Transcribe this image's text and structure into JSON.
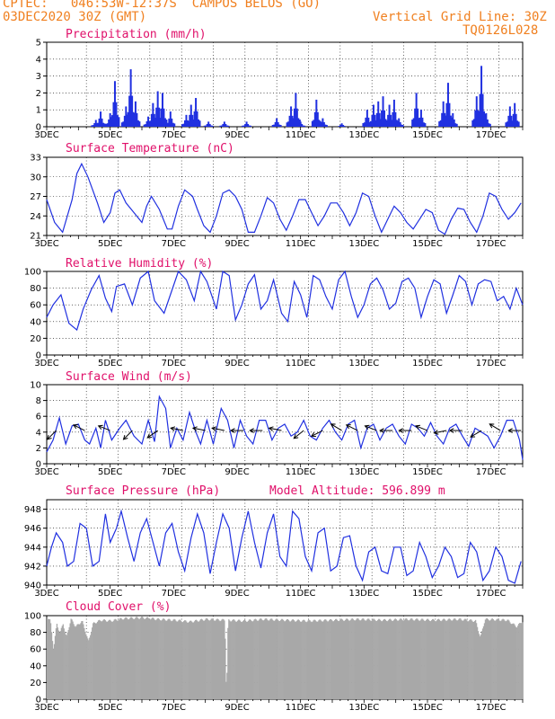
{
  "header": {
    "line1": "CPTEC:   046:53W-12:37S  CAMPOS BELOS (GO)",
    "line2": "03DEC2020 30Z (GMT)",
    "grid_note": "Vertical Grid Line: 30Z",
    "code": "TQ0126L028"
  },
  "colors": {
    "header": "#f08020",
    "title": "#e0106a",
    "series": "#2030e0",
    "cloud": "#a8a8a8"
  },
  "x_labels": [
    "3DEC",
    "5DEC",
    "7DEC",
    "9DEC",
    "11DEC",
    "13DEC",
    "15DEC",
    "17DEC"
  ],
  "chart_data": [
    {
      "id": "precip",
      "type": "bar",
      "title": "Precipitation (mm/h)",
      "ylim": [
        0,
        5
      ],
      "yticks": [
        0,
        1,
        2,
        3,
        4,
        5
      ],
      "x_range_days": [
        3,
        18
      ],
      "bursts": [
        [
          4.55,
          0.4
        ],
        [
          4.7,
          0.9
        ],
        [
          5.0,
          0.8
        ],
        [
          5.15,
          2.7
        ],
        [
          5.5,
          1.2
        ],
        [
          5.65,
          3.4
        ],
        [
          5.8,
          1.5
        ],
        [
          6.2,
          0.6
        ],
        [
          6.35,
          1.4
        ],
        [
          6.5,
          2.1
        ],
        [
          6.65,
          2.0
        ],
        [
          6.9,
          0.9
        ],
        [
          7.4,
          0.7
        ],
        [
          7.55,
          1.3
        ],
        [
          7.7,
          1.7
        ],
        [
          8.1,
          0.3
        ],
        [
          8.6,
          0.3
        ],
        [
          9.3,
          0.3
        ],
        [
          10.25,
          0.5
        ],
        [
          10.7,
          1.2
        ],
        [
          10.85,
          2.0
        ],
        [
          11.0,
          0.3
        ],
        [
          11.5,
          1.6
        ],
        [
          11.7,
          0.5
        ],
        [
          12.3,
          0.2
        ],
        [
          13.1,
          1.0
        ],
        [
          13.3,
          1.3
        ],
        [
          13.45,
          1.5
        ],
        [
          13.6,
          1.8
        ],
        [
          13.8,
          1.3
        ],
        [
          13.95,
          1.6
        ],
        [
          14.1,
          0.5
        ],
        [
          14.65,
          2.0
        ],
        [
          14.8,
          1.0
        ],
        [
          15.5,
          1.5
        ],
        [
          15.65,
          2.6
        ],
        [
          15.8,
          0.8
        ],
        [
          16.55,
          1.8
        ],
        [
          16.7,
          3.6
        ],
        [
          16.85,
          0.8
        ],
        [
          17.6,
          1.2
        ],
        [
          17.75,
          1.4
        ]
      ]
    },
    {
      "id": "temp",
      "type": "line",
      "title": "Surface Temperature (nC)",
      "ylim": [
        21,
        33
      ],
      "yticks": [
        21,
        24,
        27,
        30,
        33
      ],
      "x": [
        3.0,
        3.25,
        3.5,
        3.8,
        3.95,
        4.1,
        4.3,
        4.6,
        4.8,
        5.0,
        5.15,
        5.3,
        5.5,
        5.75,
        6.0,
        6.15,
        6.3,
        6.55,
        6.8,
        6.95,
        7.15,
        7.35,
        7.6,
        7.75,
        7.95,
        8.15,
        8.35,
        8.55,
        8.75,
        8.95,
        9.15,
        9.35,
        9.55,
        9.75,
        9.95,
        10.15,
        10.35,
        10.55,
        10.75,
        10.95,
        11.15,
        11.35,
        11.55,
        11.75,
        11.95,
        12.15,
        12.35,
        12.55,
        12.75,
        12.95,
        13.15,
        13.35,
        13.55,
        13.75,
        13.95,
        14.15,
        14.35,
        14.55,
        14.75,
        14.95,
        15.15,
        15.35,
        15.55,
        15.75,
        15.95,
        16.15,
        16.35,
        16.55,
        16.75,
        16.95,
        17.15,
        17.35,
        17.55,
        17.75,
        17.95
      ],
      "y": [
        26.5,
        23,
        21.5,
        26.5,
        30.5,
        32,
        30,
        26,
        23,
        24.5,
        27.5,
        28,
        26,
        24.5,
        23,
        25.5,
        27,
        25,
        22,
        22,
        25.5,
        28,
        27,
        25,
        22.5,
        21.5,
        24,
        27.5,
        28,
        27,
        25,
        21.5,
        21.5,
        24,
        26.8,
        26,
        23.5,
        21.8,
        24,
        26.5,
        26.5,
        24.5,
        22.5,
        24,
        26,
        26,
        24.5,
        22.5,
        24.5,
        27.5,
        27,
        24,
        21.5,
        23.5,
        25.5,
        24.5,
        23,
        22,
        23.5,
        25,
        24.5,
        21.8,
        21.2,
        23.5,
        25.2,
        25,
        23,
        21.5,
        24,
        27.5,
        27,
        25,
        23.5,
        24.5,
        26
      ]
    },
    {
      "id": "rh",
      "type": "line",
      "title": "Relative Humidity (%)",
      "ylim": [
        0,
        100
      ],
      "yticks": [
        0,
        20,
        40,
        60,
        80,
        100
      ],
      "x": [
        3.0,
        3.2,
        3.45,
        3.7,
        3.95,
        4.15,
        4.4,
        4.65,
        4.85,
        5.05,
        5.2,
        5.45,
        5.7,
        5.95,
        6.2,
        6.4,
        6.7,
        6.95,
        7.15,
        7.4,
        7.65,
        7.85,
        8.05,
        8.35,
        8.55,
        8.75,
        8.95,
        9.15,
        9.35,
        9.55,
        9.75,
        9.95,
        10.15,
        10.4,
        10.6,
        10.8,
        11.0,
        11.2,
        11.4,
        11.6,
        11.8,
        12.0,
        12.2,
        12.4,
        12.6,
        12.8,
        13.0,
        13.2,
        13.4,
        13.6,
        13.8,
        14.0,
        14.2,
        14.4,
        14.6,
        14.8,
        15.0,
        15.2,
        15.4,
        15.6,
        15.8,
        16.0,
        16.2,
        16.4,
        16.6,
        16.8,
        17.0,
        17.2,
        17.4,
        17.6,
        17.8,
        18.0
      ],
      "y": [
        45,
        60,
        72,
        38,
        30,
        55,
        78,
        95,
        68,
        52,
        82,
        85,
        60,
        92,
        100,
        65,
        50,
        78,
        100,
        90,
        65,
        100,
        88,
        55,
        100,
        95,
        42,
        60,
        85,
        96,
        55,
        65,
        90,
        50,
        40,
        88,
        72,
        45,
        95,
        90,
        70,
        55,
        90,
        100,
        70,
        45,
        60,
        85,
        92,
        78,
        55,
        62,
        88,
        92,
        80,
        45,
        70,
        90,
        85,
        50,
        72,
        95,
        88,
        60,
        85,
        90,
        88,
        65,
        70,
        55,
        80,
        60
      ]
    },
    {
      "id": "wind",
      "type": "line",
      "title": "Surface Wind (m/s)",
      "ylim": [
        0,
        10
      ],
      "yticks": [
        0,
        2,
        4,
        6,
        8,
        10
      ],
      "x": [
        3.0,
        3.2,
        3.4,
        3.6,
        3.8,
        4.0,
        4.2,
        4.35,
        4.55,
        4.7,
        4.85,
        5.05,
        5.3,
        5.5,
        5.75,
        6.0,
        6.2,
        6.4,
        6.55,
        6.75,
        6.9,
        7.1,
        7.3,
        7.5,
        7.7,
        7.85,
        8.05,
        8.25,
        8.5,
        8.7,
        8.9,
        9.1,
        9.3,
        9.5,
        9.7,
        9.9,
        10.1,
        10.3,
        10.5,
        10.7,
        10.9,
        11.1,
        11.3,
        11.5,
        11.7,
        11.9,
        12.1,
        12.3,
        12.5,
        12.7,
        12.9,
        13.1,
        13.3,
        13.5,
        13.7,
        13.9,
        14.1,
        14.3,
        14.5,
        14.7,
        14.9,
        15.1,
        15.3,
        15.5,
        15.7,
        15.9,
        16.1,
        16.3,
        16.5,
        16.7,
        16.9,
        17.1,
        17.3,
        17.5,
        17.7,
        17.9,
        18.0
      ],
      "y": [
        1.5,
        3,
        5.8,
        2.5,
        4.8,
        5,
        3,
        2.5,
        4.5,
        2,
        5.5,
        3,
        4.5,
        5.5,
        3.5,
        2.5,
        5.5,
        2.8,
        8.5,
        7,
        2,
        4.5,
        3,
        6.5,
        4,
        2.5,
        5.5,
        2.5,
        7,
        5.5,
        2,
        5.5,
        3.5,
        2.5,
        5.5,
        5.5,
        3,
        4.5,
        5,
        3.5,
        4,
        5.5,
        3.5,
        3,
        4.5,
        5.5,
        4,
        3,
        5,
        5.5,
        2,
        4.5,
        5,
        3,
        4.5,
        5,
        3.5,
        2.5,
        5,
        4.5,
        3.5,
        5.2,
        3.5,
        2.5,
        4.5,
        5,
        3.5,
        2.2,
        4.5,
        4,
        3.5,
        2,
        3.5,
        5.5,
        5.5,
        3,
        0.5
      ],
      "arrows": [
        [
          3.3,
          -1,
          -1
        ],
        [
          4.2,
          -1,
          0.5
        ],
        [
          5.0,
          -1,
          0.4
        ],
        [
          5.7,
          -1,
          -1
        ],
        [
          6.5,
          -1,
          -0.7
        ],
        [
          7.3,
          -1,
          0.2
        ],
        [
          8.0,
          -1,
          0.2
        ],
        [
          8.6,
          -1,
          0.2
        ],
        [
          9.2,
          -1,
          0
        ],
        [
          9.8,
          -1,
          0
        ],
        [
          10.4,
          -1,
          0.2
        ],
        [
          11.1,
          -1,
          -0.8
        ],
        [
          11.7,
          -1,
          -0.5
        ],
        [
          12.3,
          -1,
          0.6
        ],
        [
          12.8,
          -1,
          0.5
        ],
        [
          13.4,
          -1,
          0.4
        ],
        [
          13.9,
          -1,
          0
        ],
        [
          14.5,
          -1,
          0
        ],
        [
          15.0,
          -1,
          0.4
        ],
        [
          15.6,
          -1,
          -0.2
        ],
        [
          16.1,
          -1,
          0
        ],
        [
          16.7,
          -1,
          -0.6
        ],
        [
          17.3,
          -1,
          0.6
        ],
        [
          17.95,
          -1,
          0
        ]
      ]
    },
    {
      "id": "pres",
      "type": "line",
      "title": "Surface Pressure (hPa)",
      "subtitle": "Model Altitude: 596.899  m",
      "ylim": [
        940,
        949
      ],
      "yticks": [
        940,
        942,
        944,
        946,
        948
      ],
      "x": [
        3.0,
        3.15,
        3.3,
        3.5,
        3.65,
        3.85,
        4.05,
        4.25,
        4.45,
        4.65,
        4.85,
        5.0,
        5.2,
        5.35,
        5.55,
        5.75,
        5.95,
        6.15,
        6.35,
        6.55,
        6.75,
        6.95,
        7.15,
        7.35,
        7.55,
        7.75,
        7.95,
        8.15,
        8.35,
        8.55,
        8.75,
        8.95,
        9.15,
        9.35,
        9.55,
        9.75,
        9.95,
        10.15,
        10.35,
        10.55,
        10.75,
        10.95,
        11.15,
        11.35,
        11.55,
        11.75,
        11.95,
        12.15,
        12.35,
        12.55,
        12.75,
        12.95,
        13.15,
        13.35,
        13.55,
        13.75,
        13.95,
        14.15,
        14.35,
        14.55,
        14.75,
        14.95,
        15.15,
        15.35,
        15.55,
        15.75,
        15.95,
        16.15,
        16.35,
        16.55,
        16.75,
        16.95,
        17.15,
        17.35,
        17.55,
        17.75,
        17.95
      ],
      "y": [
        942,
        944,
        945.5,
        944.5,
        942,
        942.5,
        946.5,
        946,
        942,
        942.5,
        947.5,
        944.5,
        946,
        947.8,
        945,
        942.5,
        945.5,
        947,
        944.5,
        942,
        945.5,
        946.5,
        943.5,
        941.5,
        945,
        947.5,
        945.5,
        941.2,
        944.5,
        947.5,
        946,
        941.5,
        945,
        947.8,
        944.5,
        941.8,
        945.5,
        947.5,
        943,
        942,
        947.8,
        947,
        943,
        941.5,
        945.5,
        946,
        941.5,
        942,
        945,
        945.2,
        942,
        940.5,
        943.5,
        944,
        941.5,
        941.2,
        944,
        944,
        941,
        941.5,
        944.5,
        943,
        940.8,
        942,
        944,
        943,
        940.8,
        941.2,
        944.5,
        943.5,
        940.5,
        941.5,
        944,
        943,
        940.5,
        940.2,
        942.5
      ]
    },
    {
      "id": "cloud",
      "type": "bar",
      "title": "Cloud Cover (%)",
      "ylim": [
        0,
        100
      ],
      "yticks": [
        0,
        20,
        40,
        60,
        80,
        100
      ],
      "profile": [
        [
          3.0,
          100
        ],
        [
          3.1,
          95
        ],
        [
          3.2,
          60
        ],
        [
          3.3,
          92
        ],
        [
          3.4,
          80
        ],
        [
          3.5,
          92
        ],
        [
          3.6,
          75
        ],
        [
          3.75,
          97
        ],
        [
          3.9,
          88
        ],
        [
          4.1,
          95
        ],
        [
          4.3,
          70
        ],
        [
          4.45,
          92
        ],
        [
          4.7,
          96
        ],
        [
          5.0,
          95
        ],
        [
          5.4,
          98
        ],
        [
          6.0,
          99
        ],
        [
          6.5,
          97
        ],
        [
          7.0,
          96
        ],
        [
          7.5,
          94
        ],
        [
          8.0,
          97
        ],
        [
          8.6,
          96
        ],
        [
          8.65,
          0
        ],
        [
          8.7,
          96
        ],
        [
          9.2,
          95
        ],
        [
          9.8,
          97
        ],
        [
          10.5,
          96
        ],
        [
          11.2,
          95
        ],
        [
          12.0,
          96
        ],
        [
          12.8,
          97
        ],
        [
          13.6,
          96
        ],
        [
          14.4,
          97
        ],
        [
          15.2,
          96
        ],
        [
          16.0,
          97
        ],
        [
          16.5,
          95
        ],
        [
          16.65,
          75
        ],
        [
          16.8,
          97
        ],
        [
          17.5,
          96
        ],
        [
          17.8,
          88
        ],
        [
          18.0,
          96
        ]
      ]
    }
  ]
}
